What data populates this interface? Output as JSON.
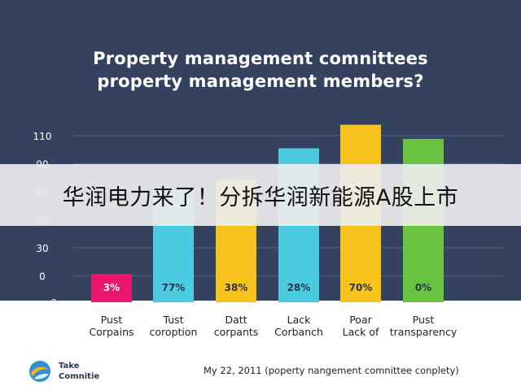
{
  "header": {
    "title_line1": "Property management comnittees",
    "title_line2": "property management members?"
  },
  "banner": {
    "text": "华润电力来了！分拆华润新能源A股上市"
  },
  "logo": {
    "line1": "Take",
    "line2": "Comnitie",
    "icon": "globe-swirl-icon"
  },
  "footer": {
    "note": "My 22, 2011 (poperty nangement comnittee conplety)"
  },
  "colors": {
    "background": "#34425f",
    "magenta": "#e8166c",
    "cyan": "#4ccbe0",
    "yellow": "#f7c21b",
    "green": "#68c440"
  },
  "chart_data": {
    "type": "bar",
    "title": "",
    "xlabel": "",
    "ylabel": "",
    "yticks": [
      "110",
      "90",
      "70",
      "50",
      "30",
      "0",
      "0"
    ],
    "ylim": [
      0,
      120
    ],
    "grid": true,
    "categories": [
      [
        "Pust",
        "Corpains"
      ],
      [
        "Tust",
        "coroption"
      ],
      [
        "Datt",
        "corpants"
      ],
      [
        "Lack",
        "Corbanch"
      ],
      [
        "Poar",
        "Lack of"
      ],
      [
        "Pust",
        "transparency"
      ]
    ],
    "values": [
      18,
      72,
      78,
      98,
      113,
      104
    ],
    "data_labels": [
      "3%",
      "77%",
      "38%",
      "28%",
      "70%",
      "0%"
    ],
    "bar_colors": [
      "#e8166c",
      "#4ccbe0",
      "#f7c21b",
      "#4ccbe0",
      "#f7c21b",
      "#68c440"
    ]
  }
}
